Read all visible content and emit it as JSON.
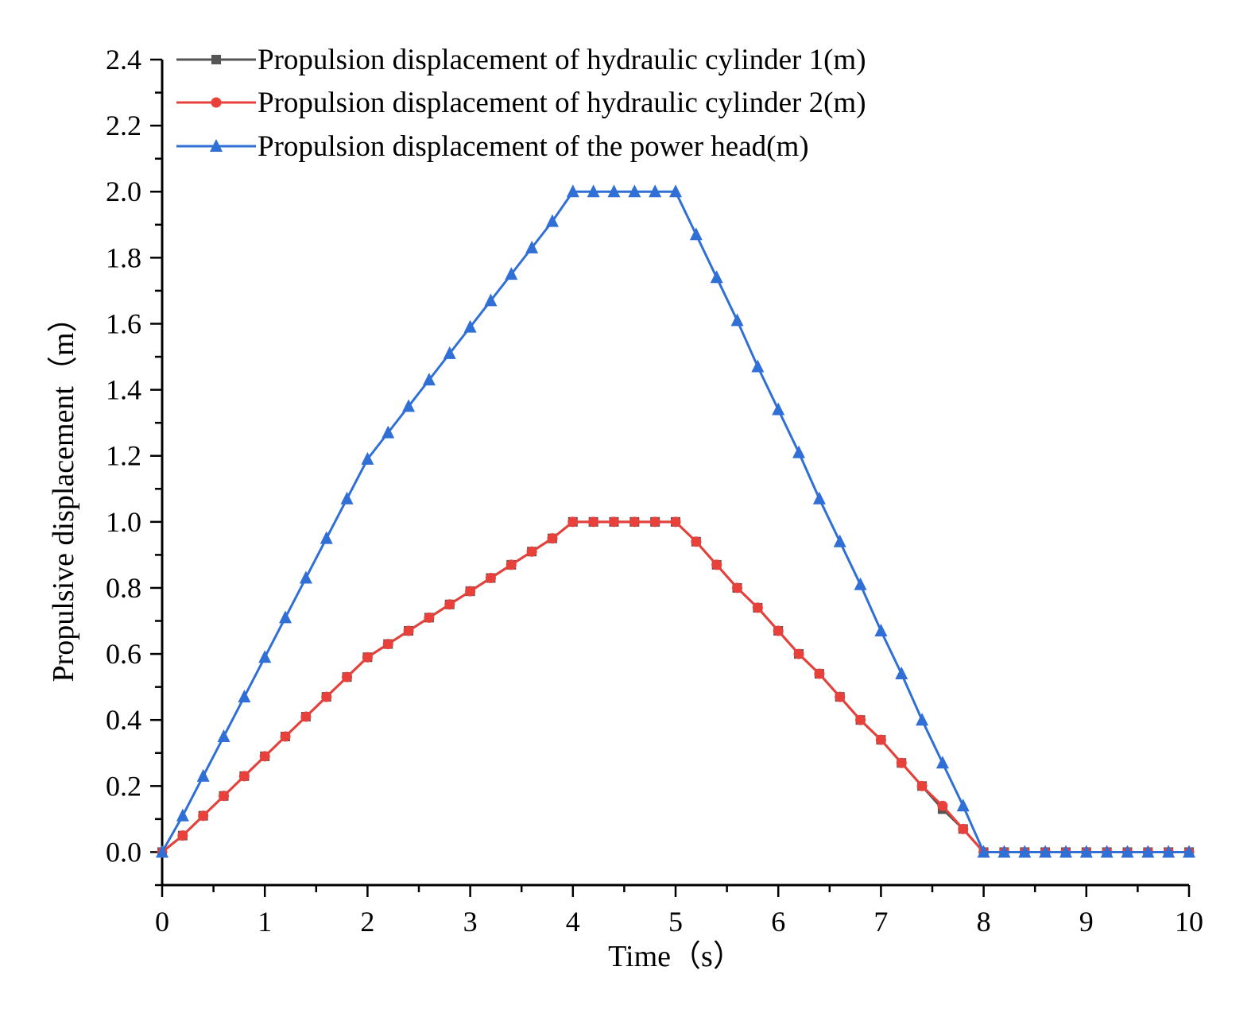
{
  "chart_data": {
    "type": "line",
    "title": "",
    "xlabel": "Time（s）",
    "ylabel": "Propulsive displacement（m）",
    "xlim": [
      0,
      10
    ],
    "ylim": [
      -0.1,
      2.4
    ],
    "x_ticks": [
      "0",
      "1",
      "2",
      "3",
      "4",
      "5",
      "6",
      "7",
      "8",
      "9",
      "10"
    ],
    "y_ticks": [
      "0.0",
      "0.2",
      "0.4",
      "0.6",
      "0.8",
      "1.0",
      "1.2",
      "1.4",
      "1.6",
      "1.8",
      "2.0",
      "2.2",
      "2.4"
    ],
    "grid": false,
    "legend_position": "top-left",
    "x": [
      0,
      0.2,
      0.4,
      0.6,
      0.8,
      1.0,
      1.2,
      1.4,
      1.6,
      1.8,
      2.0,
      2.2,
      2.4,
      2.6,
      2.8,
      3.0,
      3.2,
      3.4,
      3.6,
      3.8,
      4.0,
      4.2,
      4.4,
      4.6,
      4.8,
      5.0,
      5.2,
      5.4,
      5.6,
      5.8,
      6.0,
      6.2,
      6.4,
      6.6,
      6.8,
      7.0,
      7.2,
      7.4,
      7.6,
      7.8,
      8.0,
      8.2,
      8.4,
      8.6,
      8.8,
      9.0,
      9.2,
      9.4,
      9.6,
      9.8,
      10.0
    ],
    "series": [
      {
        "name": "Propulsion displacement of hydraulic cylinder 1(m)",
        "color": "#555555",
        "marker": "square",
        "values": [
          0,
          0.05,
          0.11,
          0.17,
          0.23,
          0.29,
          0.35,
          0.41,
          0.47,
          0.53,
          0.59,
          0.63,
          0.67,
          0.71,
          0.75,
          0.79,
          0.83,
          0.87,
          0.91,
          0.95,
          1.0,
          1.0,
          1.0,
          1.0,
          1.0,
          1.0,
          0.94,
          0.87,
          0.8,
          0.74,
          0.67,
          0.6,
          0.54,
          0.47,
          0.4,
          0.34,
          0.27,
          0.2,
          0.13,
          0.07,
          0.0,
          0,
          0,
          0,
          0,
          0,
          0,
          0,
          0,
          0,
          0
        ]
      },
      {
        "name": "Propulsion displacement of hydraulic cylinder 2(m)",
        "color": "#e8403a",
        "marker": "circle",
        "values": [
          0,
          0.05,
          0.11,
          0.17,
          0.23,
          0.29,
          0.35,
          0.41,
          0.47,
          0.53,
          0.59,
          0.63,
          0.67,
          0.71,
          0.75,
          0.79,
          0.83,
          0.87,
          0.91,
          0.95,
          1.0,
          1.0,
          1.0,
          1.0,
          1.0,
          1.0,
          0.94,
          0.87,
          0.8,
          0.74,
          0.67,
          0.6,
          0.54,
          0.47,
          0.4,
          0.34,
          0.27,
          0.2,
          0.14,
          0.07,
          0.0,
          0,
          0,
          0,
          0,
          0,
          0,
          0,
          0,
          0,
          0
        ]
      },
      {
        "name": "Propulsion displacement of the power head(m)",
        "color": "#2f6fd6",
        "marker": "triangle",
        "values": [
          0,
          0.11,
          0.23,
          0.35,
          0.47,
          0.59,
          0.71,
          0.83,
          0.95,
          1.07,
          1.19,
          1.27,
          1.35,
          1.43,
          1.51,
          1.59,
          1.67,
          1.75,
          1.83,
          1.91,
          2.0,
          2.0,
          2.0,
          2.0,
          2.0,
          2.0,
          1.87,
          1.74,
          1.61,
          1.47,
          1.34,
          1.21,
          1.07,
          0.94,
          0.81,
          0.67,
          0.54,
          0.4,
          0.27,
          0.14,
          0.0,
          0,
          0,
          0,
          0,
          0,
          0,
          0,
          0,
          0,
          0
        ]
      }
    ]
  }
}
